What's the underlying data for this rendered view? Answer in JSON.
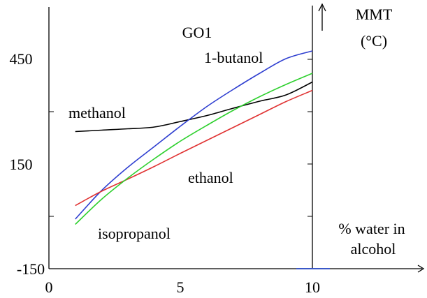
{
  "chart_data": {
    "type": "line",
    "title": "GO1",
    "ylabel_lines": [
      "MMT",
      "(°C)"
    ],
    "xlabel_lines": [
      "% water in",
      "alcohol"
    ],
    "xlim": [
      0,
      14
    ],
    "ylim": [
      -150,
      600
    ],
    "x_ticks": [
      "0",
      "5",
      "10"
    ],
    "y_ticks": [
      "-150",
      "150",
      "450"
    ],
    "grid": false,
    "legend": "none",
    "series": [
      {
        "name": "methanol",
        "color": "#000000",
        "x": [
          1,
          2,
          3,
          4,
          5,
          6,
          7,
          8,
          9,
          10
        ],
        "y": [
          243,
          247,
          251,
          256,
          272,
          289,
          310,
          330,
          348,
          385
        ]
      },
      {
        "name": "1-butanol",
        "color": "#2f3fd0",
        "x": [
          1,
          2,
          3,
          4,
          5,
          6,
          7,
          8,
          9,
          10
        ],
        "y": [
          -8,
          74,
          141,
          200,
          259,
          315,
          364,
          410,
          452,
          474
        ]
      },
      {
        "name": "ethanol",
        "color": "#e03232",
        "x": [
          1,
          2,
          3,
          4,
          5,
          6,
          7,
          8,
          9,
          10
        ],
        "y": [
          31,
          72,
          107,
          143,
          181,
          218,
          255,
          292,
          329,
          361
        ]
      },
      {
        "name": "isopropanol",
        "color": "#2ed02e",
        "x": [
          1,
          2,
          3,
          4,
          5,
          6,
          7,
          8,
          9,
          10
        ],
        "y": [
          -23,
          49,
          110,
          165,
          216,
          261,
          304,
          343,
          378,
          410
        ]
      }
    ]
  }
}
